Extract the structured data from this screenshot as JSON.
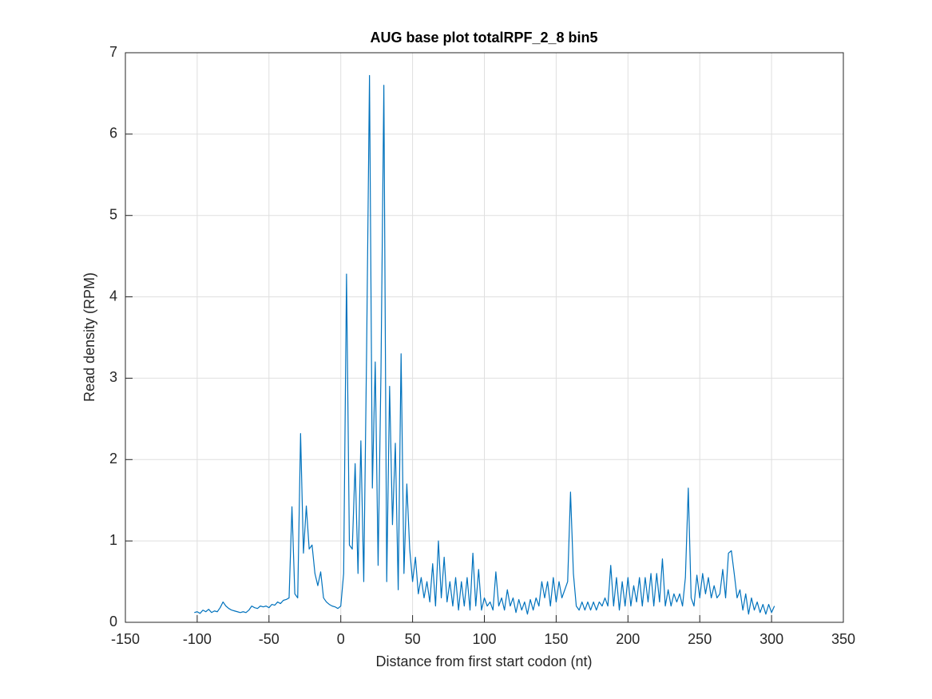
{
  "chart_data": {
    "type": "line",
    "title": "AUG base plot totalRPF_2_8 bin5",
    "xlabel": "Distance from first start codon (nt)",
    "ylabel": "Read density (RPM)",
    "xlim": [
      -150,
      350
    ],
    "xticks": [
      -150,
      -100,
      -50,
      0,
      50,
      100,
      150,
      200,
      250,
      300,
      350
    ],
    "ylim": [
      0,
      7
    ],
    "yticks": [
      0,
      1,
      2,
      3,
      4,
      5,
      6,
      7
    ],
    "grid": true,
    "x": [
      -102,
      -100,
      -98,
      -96,
      -94,
      -92,
      -90,
      -88,
      -86,
      -84,
      -82,
      -80,
      -78,
      -76,
      -74,
      -72,
      -70,
      -68,
      -66,
      -64,
      -62,
      -60,
      -58,
      -56,
      -54,
      -52,
      -50,
      -48,
      -46,
      -44,
      -42,
      -40,
      -38,
      -36,
      -34,
      -32,
      -30,
      -28,
      -26,
      -24,
      -22,
      -20,
      -18,
      -16,
      -14,
      -12,
      -10,
      -8,
      -6,
      -4,
      -2,
      0,
      2,
      4,
      6,
      8,
      10,
      12,
      14,
      16,
      18,
      20,
      22,
      24,
      26,
      28,
      30,
      32,
      34,
      36,
      38,
      40,
      42,
      44,
      46,
      48,
      50,
      52,
      54,
      56,
      58,
      60,
      62,
      64,
      66,
      68,
      70,
      72,
      74,
      76,
      78,
      80,
      82,
      84,
      86,
      88,
      90,
      92,
      94,
      96,
      98,
      100,
      102,
      104,
      106,
      108,
      110,
      112,
      114,
      116,
      118,
      120,
      122,
      124,
      126,
      128,
      130,
      132,
      134,
      136,
      138,
      140,
      142,
      144,
      146,
      148,
      150,
      152,
      154,
      156,
      158,
      160,
      162,
      164,
      166,
      168,
      170,
      172,
      174,
      176,
      178,
      180,
      182,
      184,
      186,
      188,
      190,
      192,
      194,
      196,
      198,
      200,
      202,
      204,
      206,
      208,
      210,
      212,
      214,
      216,
      218,
      220,
      222,
      224,
      226,
      228,
      230,
      232,
      234,
      236,
      238,
      240,
      242,
      244,
      246,
      248,
      250,
      252,
      254,
      256,
      258,
      260,
      262,
      264,
      266,
      268,
      270,
      272,
      274,
      276,
      278,
      280,
      282,
      284,
      286,
      288,
      290,
      292,
      294,
      296,
      298,
      300,
      302
    ],
    "series": [
      {
        "color": "#0072bd",
        "values": [
          0.12,
          0.13,
          0.11,
          0.15,
          0.13,
          0.16,
          0.12,
          0.14,
          0.13,
          0.18,
          0.25,
          0.2,
          0.17,
          0.15,
          0.14,
          0.13,
          0.12,
          0.13,
          0.12,
          0.15,
          0.2,
          0.18,
          0.17,
          0.2,
          0.19,
          0.2,
          0.18,
          0.22,
          0.21,
          0.25,
          0.23,
          0.27,
          0.28,
          0.3,
          1.42,
          0.35,
          0.3,
          2.32,
          0.85,
          1.43,
          0.9,
          0.95,
          0.6,
          0.45,
          0.62,
          0.3,
          0.25,
          0.22,
          0.2,
          0.19,
          0.17,
          0.2,
          0.6,
          4.28,
          0.95,
          0.9,
          1.95,
          0.6,
          2.23,
          0.5,
          3.35,
          6.72,
          1.65,
          3.2,
          0.7,
          3.08,
          6.6,
          0.5,
          2.9,
          1.2,
          2.2,
          0.4,
          3.3,
          0.6,
          1.7,
          0.9,
          0.5,
          0.8,
          0.35,
          0.55,
          0.3,
          0.5,
          0.25,
          0.72,
          0.2,
          1.0,
          0.3,
          0.8,
          0.25,
          0.5,
          0.2,
          0.55,
          0.15,
          0.5,
          0.2,
          0.55,
          0.15,
          0.85,
          0.2,
          0.65,
          0.15,
          0.3,
          0.2,
          0.25,
          0.15,
          0.62,
          0.2,
          0.3,
          0.15,
          0.4,
          0.2,
          0.3,
          0.12,
          0.28,
          0.15,
          0.25,
          0.1,
          0.28,
          0.15,
          0.3,
          0.2,
          0.5,
          0.3,
          0.5,
          0.2,
          0.55,
          0.25,
          0.5,
          0.3,
          0.4,
          0.5,
          1.6,
          0.6,
          0.2,
          0.15,
          0.25,
          0.15,
          0.25,
          0.15,
          0.25,
          0.15,
          0.25,
          0.2,
          0.3,
          0.2,
          0.7,
          0.2,
          0.55,
          0.15,
          0.5,
          0.2,
          0.55,
          0.2,
          0.45,
          0.25,
          0.55,
          0.2,
          0.55,
          0.25,
          0.6,
          0.2,
          0.6,
          0.25,
          0.78,
          0.2,
          0.4,
          0.2,
          0.35,
          0.25,
          0.35,
          0.2,
          0.55,
          1.65,
          0.3,
          0.2,
          0.58,
          0.3,
          0.6,
          0.35,
          0.55,
          0.3,
          0.45,
          0.3,
          0.35,
          0.65,
          0.3,
          0.85,
          0.88,
          0.6,
          0.3,
          0.4,
          0.15,
          0.35,
          0.1,
          0.3,
          0.15,
          0.25,
          0.12,
          0.22,
          0.1,
          0.22,
          0.12,
          0.2
        ]
      }
    ]
  }
}
